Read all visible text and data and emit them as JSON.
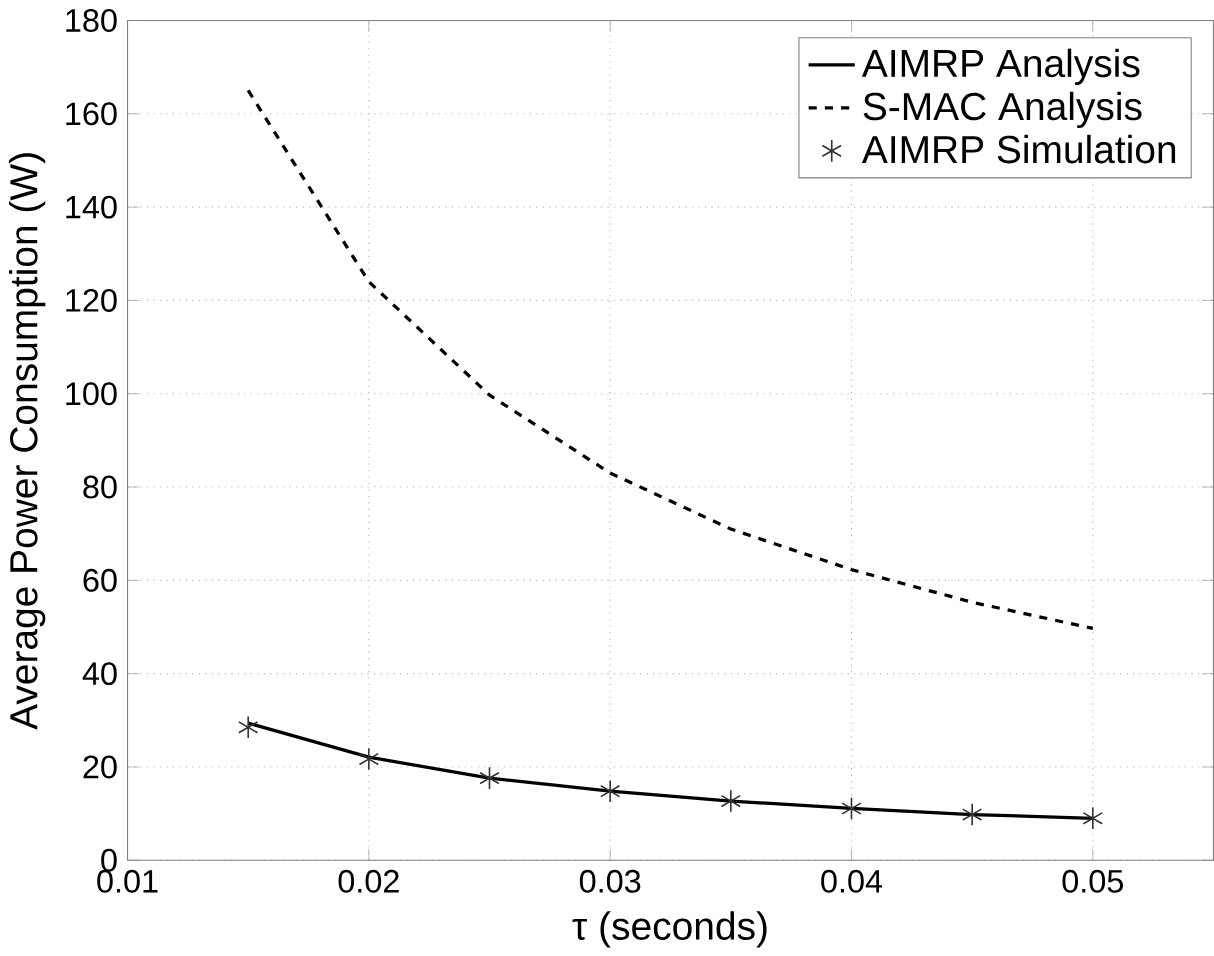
{
  "chart_data": {
    "type": "line",
    "xlabel": "τ (seconds)",
    "ylabel": "Average Power Consumption (W)",
    "x": [
      0.015,
      0.02,
      0.025,
      0.03,
      0.035,
      0.04,
      0.045,
      0.05
    ],
    "series": [
      {
        "name": "AIMRP Analysis",
        "color": "#000000",
        "line_style": "solid",
        "marker": "none",
        "values": [
          29.4,
          22.1,
          17.6,
          14.8,
          12.7,
          11.1,
          9.8,
          9.0
        ]
      },
      {
        "name": "S-MAC Analysis",
        "color": "#000000",
        "line_style": "dashed",
        "marker": "none",
        "values": [
          165,
          124,
          99.7,
          83,
          71,
          62.3,
          55.3,
          49.7
        ]
      },
      {
        "name": "AIMRP Simulation",
        "type": "scatter",
        "color": "#333333",
        "marker": "cross",
        "values": [
          28.5,
          21.7,
          17.6,
          14.8,
          12.7,
          11.1,
          9.8,
          9.0
        ]
      }
    ],
    "xlim": [
      0.01,
      0.055
    ],
    "ylim": [
      0,
      180
    ],
    "xticks": [
      0.01,
      0.02,
      0.03,
      0.04,
      0.05
    ],
    "yticks": [
      0,
      20,
      40,
      60,
      80,
      100,
      120,
      140,
      160,
      180
    ],
    "grid": true,
    "legend": "top right"
  }
}
